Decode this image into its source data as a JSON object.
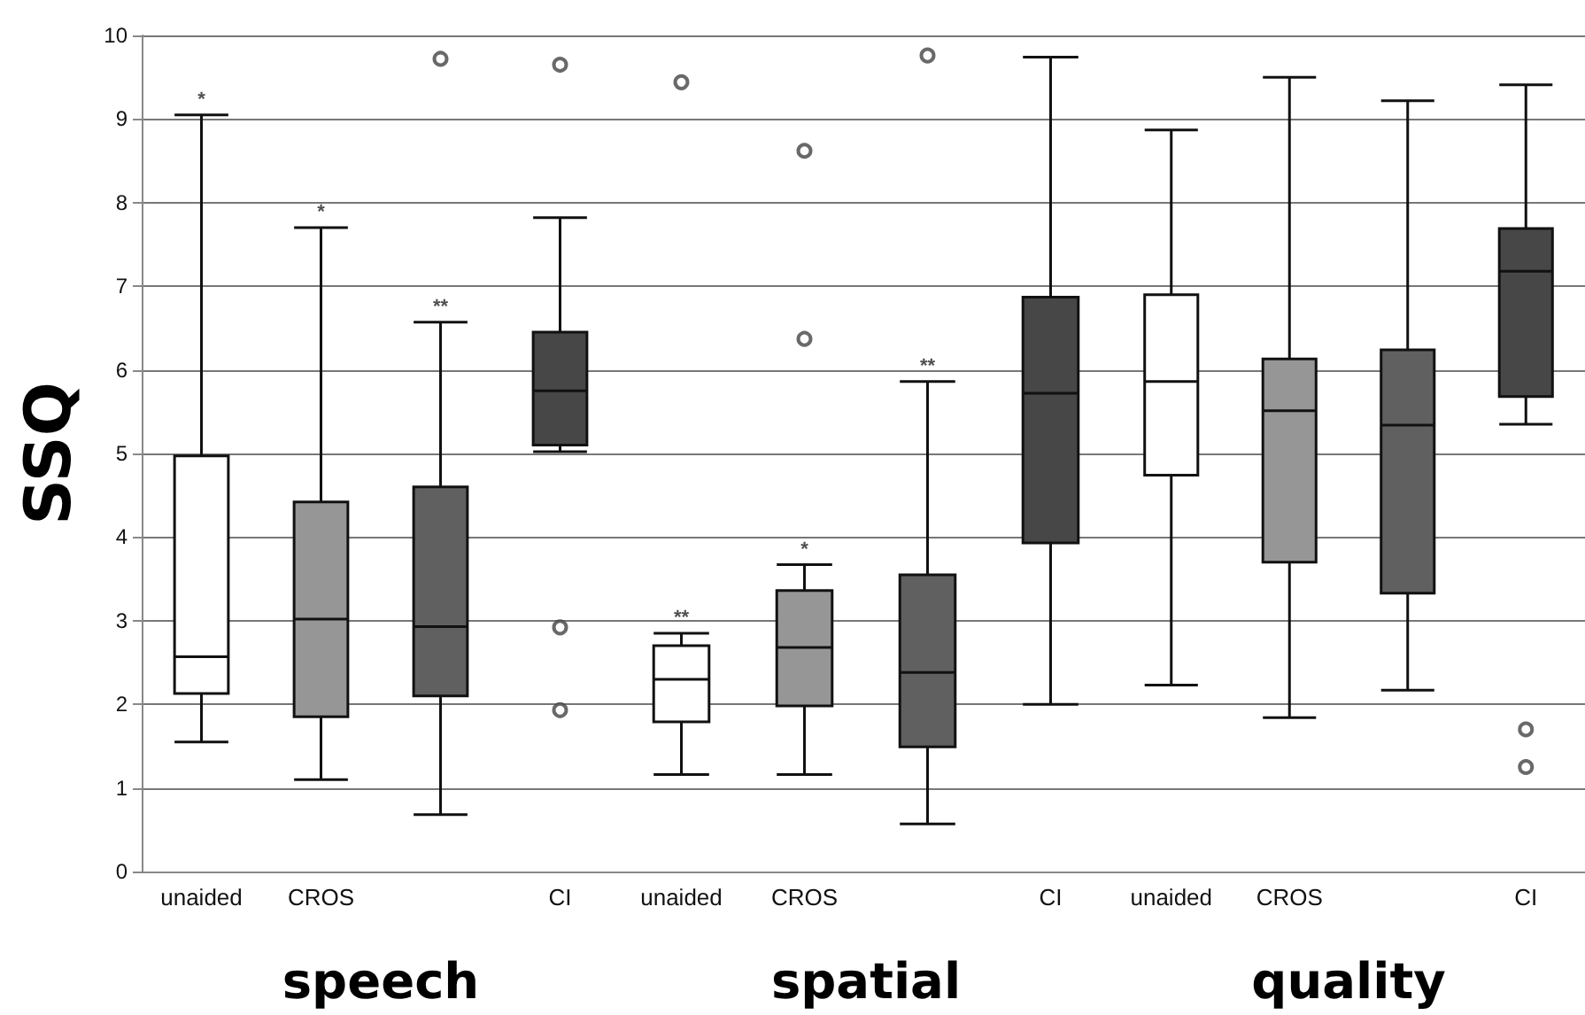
{
  "chart_data": [
    {
      "type": "box",
      "xlabel": "speech",
      "ylabel": "SSQ",
      "categories": [
        "unaided",
        "CROS",
        null,
        "CI"
      ],
      "colors": [
        "#ffffff",
        "#969696",
        "#606060",
        "#474747"
      ],
      "ylim": [
        0,
        10
      ],
      "yticks": [
        0,
        1,
        2,
        3,
        4,
        5,
        6,
        7,
        8,
        9,
        10
      ],
      "grid": "y",
      "boxes": [
        {
          "low": 1.55,
          "q1": 2.13,
          "median": 2.57,
          "q3": 4.97,
          "high": 9.05
        },
        {
          "low": 1.1,
          "q1": 1.85,
          "median": 3.02,
          "q3": 4.42,
          "high": 7.7
        },
        {
          "low": 0.68,
          "q1": 2.1,
          "median": 2.93,
          "q3": 4.6,
          "high": 6.57,
          "outliers": [
            9.72
          ]
        },
        {
          "low": 5.02,
          "q1": 5.1,
          "median": 5.75,
          "q3": 6.45,
          "high": 7.82,
          "outliers": [
            9.65,
            2.92,
            1.93
          ]
        }
      ],
      "annotations": [
        {
          "text": "*",
          "x": "unaided",
          "y": 9.05
        },
        {
          "text": "*",
          "x": "CROS",
          "y": 7.7
        },
        {
          "text": "**",
          "y": 6.57
        }
      ]
    },
    {
      "type": "box",
      "xlabel": "spatial",
      "categories": [
        "unaided",
        "CROS",
        null,
        "CI"
      ],
      "colors": [
        "#ffffff",
        "#969696",
        "#606060",
        "#474747"
      ],
      "ylim": [
        0,
        10
      ],
      "yticks": [
        0,
        1,
        2,
        3,
        4,
        5,
        6,
        7,
        8,
        9,
        10
      ],
      "grid": "y",
      "tick_labels": "x",
      "boxes": [
        {
          "low": 1.16,
          "q1": 1.79,
          "median": 2.3,
          "q3": 2.7,
          "high": 2.85,
          "outliers": [
            9.44
          ]
        },
        {
          "low": 1.16,
          "q1": 1.98,
          "median": 2.68,
          "q3": 3.36,
          "high": 3.67,
          "outliers": [
            6.37,
            8.62
          ]
        },
        {
          "low": 0.57,
          "q1": 1.49,
          "median": 2.38,
          "q3": 3.55,
          "high": 5.86,
          "outliers": [
            9.76
          ]
        },
        {
          "low": 2.0,
          "q1": 3.93,
          "median": 5.72,
          "q3": 6.87,
          "high": 9.74
        }
      ],
      "annotations": [
        {
          "text": "**",
          "x": "unaided",
          "y": 2.85
        },
        {
          "text": "*",
          "x": "CROS",
          "y": 3.67
        },
        {
          "text": "**",
          "y": 5.86
        }
      ]
    },
    {
      "type": "box",
      "xlabel": "quality",
      "categories": [
        "unaided",
        "CROS",
        null,
        "CI"
      ],
      "colors": [
        "#ffffff",
        "#969696",
        "#606060",
        "#474747"
      ],
      "ylim": [
        0,
        10
      ],
      "yticks": [
        0,
        1,
        2,
        3,
        4,
        5,
        6,
        7,
        8,
        9,
        10
      ],
      "grid": "y",
      "tick_labels": "x",
      "boxes": [
        {
          "low": 2.23,
          "q1": 4.74,
          "median": 5.86,
          "q3": 6.9,
          "high": 8.87
        },
        {
          "low": 1.84,
          "q1": 3.7,
          "median": 5.51,
          "q3": 6.13,
          "high": 9.5
        },
        {
          "low": 2.17,
          "q1": 3.33,
          "median": 5.34,
          "q3": 6.24,
          "high": 9.22
        },
        {
          "low": 5.35,
          "q1": 5.68,
          "median": 7.18,
          "q3": 7.69,
          "high": 9.41,
          "outliers": [
            1.7,
            1.25
          ]
        }
      ]
    }
  ]
}
